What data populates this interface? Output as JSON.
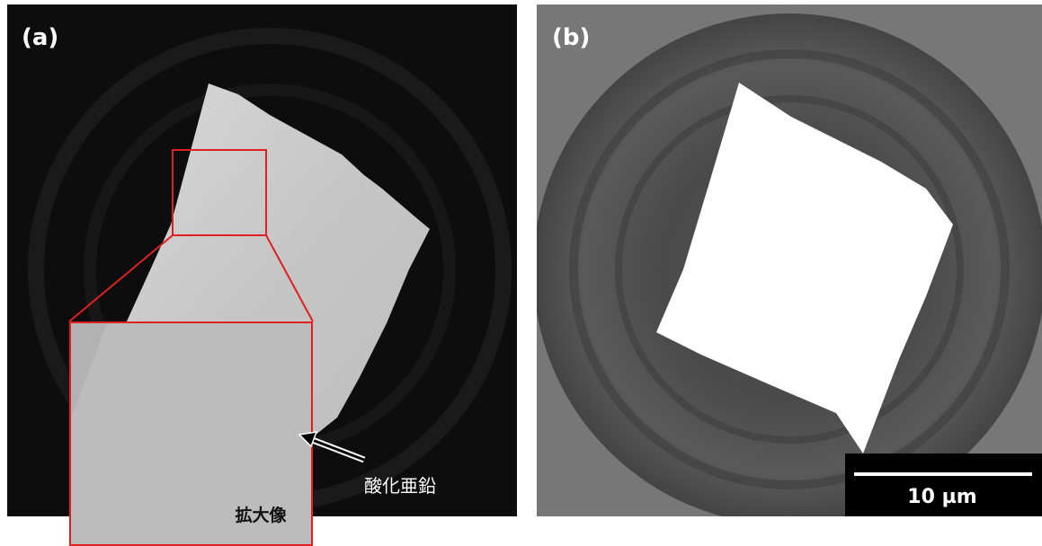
{
  "panel_a": {
    "label": "(a)",
    "annotation": "酸化亜鉛",
    "inset_label": "拡大像"
  },
  "panel_b": {
    "label": "(b)",
    "scale_bar": "10 µm"
  }
}
